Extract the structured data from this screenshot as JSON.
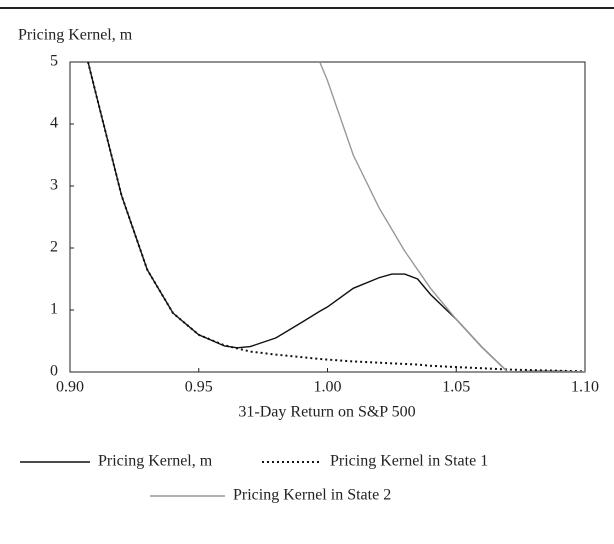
{
  "chart_data": {
    "type": "line",
    "y_label": "Pricing Kernel, m",
    "x_label": "31-Day Return on S&P 500",
    "x": [
      0.907,
      0.91,
      0.92,
      0.93,
      0.94,
      0.95,
      0.96,
      0.965,
      0.97,
      0.98,
      0.99,
      0.997,
      1.0,
      1.01,
      1.02,
      1.025,
      1.03,
      1.035,
      1.04,
      1.05,
      1.06,
      1.07,
      1.08,
      1.09,
      1.1
    ],
    "series": [
      {
        "name": "Pricing Kernel, m",
        "color": "#111111",
        "dash": "solid",
        "values": [
          5,
          4.5,
          2.85,
          1.65,
          0.95,
          0.6,
          0.42,
          0.39,
          0.41,
          0.55,
          0.8,
          0.98,
          1.05,
          1.35,
          1.52,
          1.58,
          1.58,
          1.5,
          1.25,
          0.85,
          0.4,
          0,
          0.01,
          0.01,
          0
        ]
      },
      {
        "name": "Pricing Kernel in State 1",
        "color": "#111111",
        "dash": "dotted",
        "values": [
          5,
          4.5,
          2.85,
          1.65,
          0.95,
          0.6,
          0.43,
          0.38,
          0.33,
          0.28,
          0.24,
          0.21,
          0.2,
          0.17,
          0.15,
          0.14,
          0.13,
          0.12,
          0.1,
          0.08,
          0.06,
          0.04,
          0.03,
          0.02,
          0.01
        ]
      },
      {
        "name": "Pricing Kernel in State 2",
        "color": "#999999",
        "dash": "solid",
        "values": [
          null,
          null,
          null,
          null,
          null,
          null,
          null,
          null,
          null,
          null,
          null,
          5,
          4.7,
          3.5,
          2.65,
          2.3,
          1.95,
          1.65,
          1.35,
          0.85,
          0.4,
          0,
          0,
          0,
          0
        ]
      }
    ],
    "xlim": [
      0.9,
      1.1
    ],
    "xticks": [
      {
        "value": 0.9,
        "label": "0.90"
      },
      0.95,
      {
        "value": 1.0,
        "label": "1.00"
      },
      1.05,
      {
        "value": 1.1,
        "label": "1.10"
      }
    ],
    "ylim": [
      0,
      5
    ],
    "yticks": [
      0,
      1,
      2,
      3,
      4,
      5
    ],
    "grid": false
  }
}
